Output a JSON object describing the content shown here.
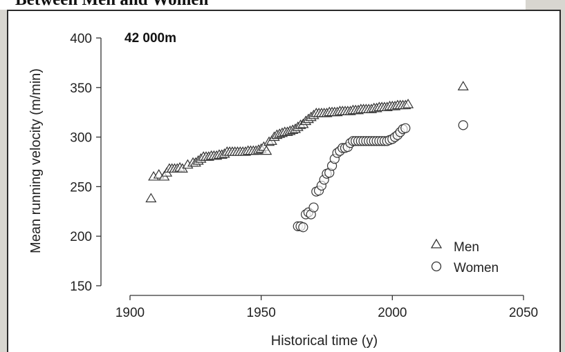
{
  "header": {
    "title": "Between Men and Women"
  },
  "chart_data": {
    "type": "scatter",
    "title": "42 000m",
    "xlabel": "Historical time (y)",
    "ylabel": "Mean running velocity (m/min)",
    "xlim": [
      1900,
      2050
    ],
    "ylim": [
      150,
      400
    ],
    "xticks": [
      "1900",
      "1950",
      "2000",
      "2050"
    ],
    "yticks": [
      "150",
      "200",
      "250",
      "300",
      "350",
      "400"
    ],
    "legend_position": "bottom-right",
    "series": [
      {
        "name": "Men",
        "marker": "triangle",
        "color": "#333333",
        "x": [
          1908,
          1909,
          1911,
          1913,
          1914,
          1915,
          1916,
          1917,
          1918,
          1919,
          1920,
          1922,
          1924,
          1925,
          1926,
          1927,
          1928,
          1929,
          1930,
          1931,
          1932,
          1933,
          1934,
          1935,
          1936,
          1937,
          1938,
          1939,
          1940,
          1941,
          1942,
          1943,
          1944,
          1945,
          1946,
          1947,
          1948,
          1949,
          1950,
          1951,
          1952,
          1953,
          1954,
          1955,
          1956,
          1957,
          1958,
          1959,
          1960,
          1961,
          1962,
          1963,
          1964,
          1965,
          1966,
          1967,
          1968,
          1969,
          1970,
          1971,
          1972,
          1973,
          1974,
          1975,
          1976,
          1977,
          1978,
          1979,
          1980,
          1981,
          1982,
          1983,
          1984,
          1985,
          1986,
          1987,
          1988,
          1989,
          1990,
          1991,
          1992,
          1993,
          1994,
          1995,
          1996,
          1997,
          1998,
          1999,
          2000,
          2001,
          2002,
          2003,
          2004,
          2005,
          2006,
          2027
        ],
        "y": [
          238,
          260,
          262,
          260,
          264,
          268,
          268,
          268,
          268,
          269,
          268,
          272,
          274,
          274,
          276,
          278,
          280,
          280,
          280,
          281,
          281,
          281,
          282,
          282,
          283,
          285,
          285,
          285,
          285,
          285,
          285,
          285,
          285,
          286,
          286,
          286,
          286,
          287,
          288,
          290,
          286,
          295,
          296,
          300,
          302,
          303,
          304,
          305,
          305,
          306,
          307,
          308,
          310,
          312,
          313,
          316,
          318,
          320,
          322,
          324,
          324,
          324,
          324,
          324,
          325,
          325,
          325,
          325,
          326,
          326,
          326,
          326,
          326,
          327,
          327,
          327,
          328,
          328,
          328,
          328,
          328,
          329,
          329,
          330,
          330,
          330,
          330,
          331,
          331,
          331,
          332,
          332,
          332,
          332,
          333,
          351
        ]
      },
      {
        "name": "Women",
        "marker": "circle",
        "color": "#333333",
        "x": [
          1964,
          1965,
          1966,
          1967,
          1968,
          1969,
          1970,
          1971,
          1972,
          1973,
          1974,
          1975,
          1976,
          1977,
          1978,
          1979,
          1980,
          1981,
          1982,
          1983,
          1984,
          1985,
          1986,
          1987,
          1988,
          1989,
          1990,
          1991,
          1992,
          1993,
          1994,
          1995,
          1996,
          1997,
          1998,
          1999,
          2000,
          2001,
          2002,
          2003,
          2004,
          2005,
          2027
        ],
        "y": [
          210,
          210,
          209,
          222,
          224,
          222,
          229,
          245,
          246,
          251,
          257,
          263,
          264,
          271,
          278,
          284,
          286,
          289,
          289,
          290,
          294,
          296,
          296,
          296,
          296,
          296,
          296,
          296,
          296,
          296,
          296,
          296,
          296,
          296,
          296,
          297,
          298,
          300,
          302,
          305,
          308,
          309,
          312
        ]
      }
    ]
  }
}
